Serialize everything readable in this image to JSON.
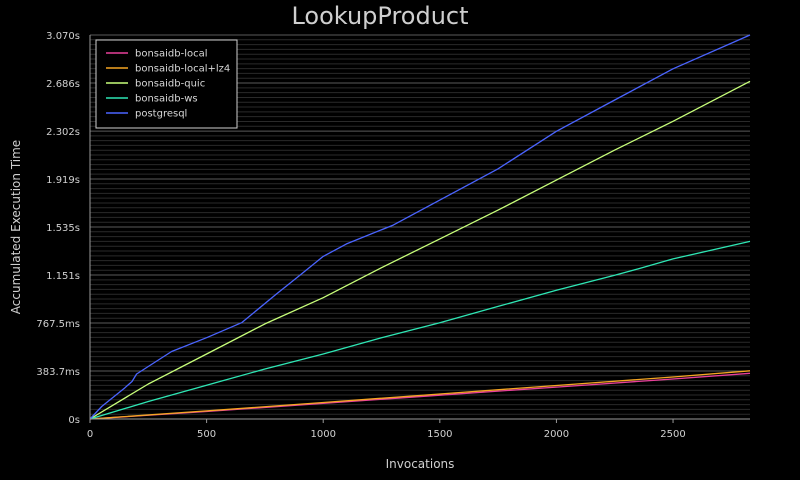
{
  "chart_data": {
    "type": "line",
    "title": "LookupProduct",
    "xlabel": "Invocations",
    "ylabel": "Accumulated Execution Time",
    "xlim": [
      0,
      2830
    ],
    "ylim": [
      0,
      3.07
    ],
    "x_ticks": [
      0,
      500,
      1000,
      1500,
      2000,
      2500
    ],
    "y_ticks": [
      0,
      0.3837,
      0.7675,
      1.151,
      1.535,
      1.919,
      2.302,
      2.686,
      3.07
    ],
    "y_tick_labels": [
      "0s",
      "383.7ms",
      "767.5ms",
      "1.151s",
      "1.535s",
      "1.919s",
      "2.302s",
      "2.686s",
      "3.070s"
    ],
    "grid": true,
    "legend_position": "top-left",
    "background": "#000000",
    "series": [
      {
        "name": "bonsaidb-local",
        "color": "#e8409a",
        "x": [
          0,
          500,
          1000,
          1500,
          2000,
          2500,
          2830
        ],
        "y": [
          0,
          0.06,
          0.125,
          0.19,
          0.255,
          0.32,
          0.365
        ]
      },
      {
        "name": "bonsaidb-local+lz4",
        "color": "#f5a623",
        "x": [
          0,
          500,
          1000,
          1500,
          2000,
          2500,
          2830
        ],
        "y": [
          0,
          0.065,
          0.132,
          0.2,
          0.268,
          0.336,
          0.385
        ]
      },
      {
        "name": "bonsaidb-quic",
        "color": "#c8ff7a",
        "x": [
          0,
          250,
          500,
          750,
          1000,
          1250,
          1500,
          1750,
          2000,
          2250,
          2500,
          2830
        ],
        "y": [
          0,
          0.28,
          0.52,
          0.76,
          0.97,
          1.21,
          1.44,
          1.67,
          1.91,
          2.15,
          2.38,
          2.7
        ]
      },
      {
        "name": "bonsaidb-ws",
        "color": "#2ee6b4",
        "x": [
          0,
          250,
          500,
          750,
          1000,
          1250,
          1500,
          1750,
          2000,
          2250,
          2350,
          2500,
          2830
        ],
        "y": [
          0,
          0.14,
          0.27,
          0.4,
          0.52,
          0.65,
          0.77,
          0.9,
          1.03,
          1.15,
          1.2,
          1.28,
          1.42
        ]
      },
      {
        "name": "postgresql",
        "color": "#4a64ff",
        "x": [
          0,
          50,
          150,
          180,
          200,
          350,
          500,
          650,
          800,
          900,
          1000,
          1100,
          1300,
          1500,
          1750,
          2000,
          2250,
          2500,
          2830
        ],
        "y": [
          0,
          0.1,
          0.25,
          0.3,
          0.36,
          0.54,
          0.65,
          0.77,
          1.0,
          1.15,
          1.3,
          1.4,
          1.55,
          1.75,
          2.0,
          2.3,
          2.55,
          2.8,
          3.07
        ]
      }
    ]
  }
}
